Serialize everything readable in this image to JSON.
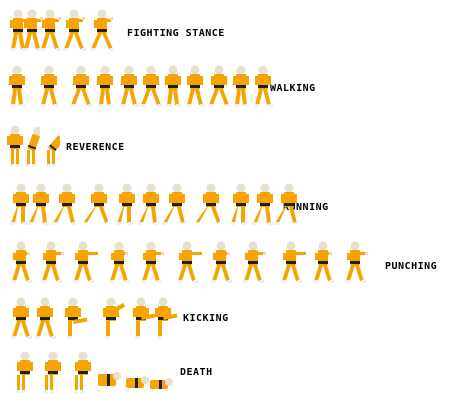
{
  "sheet": {
    "background": "#ffffff",
    "colors": {
      "gi": "#f7a400",
      "gi_shadow": "#c07800",
      "skin": "#f4d8b4",
      "head": "#e8e0d0",
      "belt": "#202020",
      "feet": "#f0f0f0"
    },
    "rows": [
      {
        "label": "FIGHTING STANCE",
        "frame_count": 5
      },
      {
        "label": "WALKING",
        "frame_count": 11
      },
      {
        "label": "REVERENCE",
        "frame_count": 3
      },
      {
        "label": "RUNNING",
        "frame_count": 11
      },
      {
        "label": "PUNCHING",
        "frame_count": 11
      },
      {
        "label": "KICKING",
        "frame_count": 6
      },
      {
        "label": "DEATH",
        "frame_count": 6
      }
    ]
  }
}
